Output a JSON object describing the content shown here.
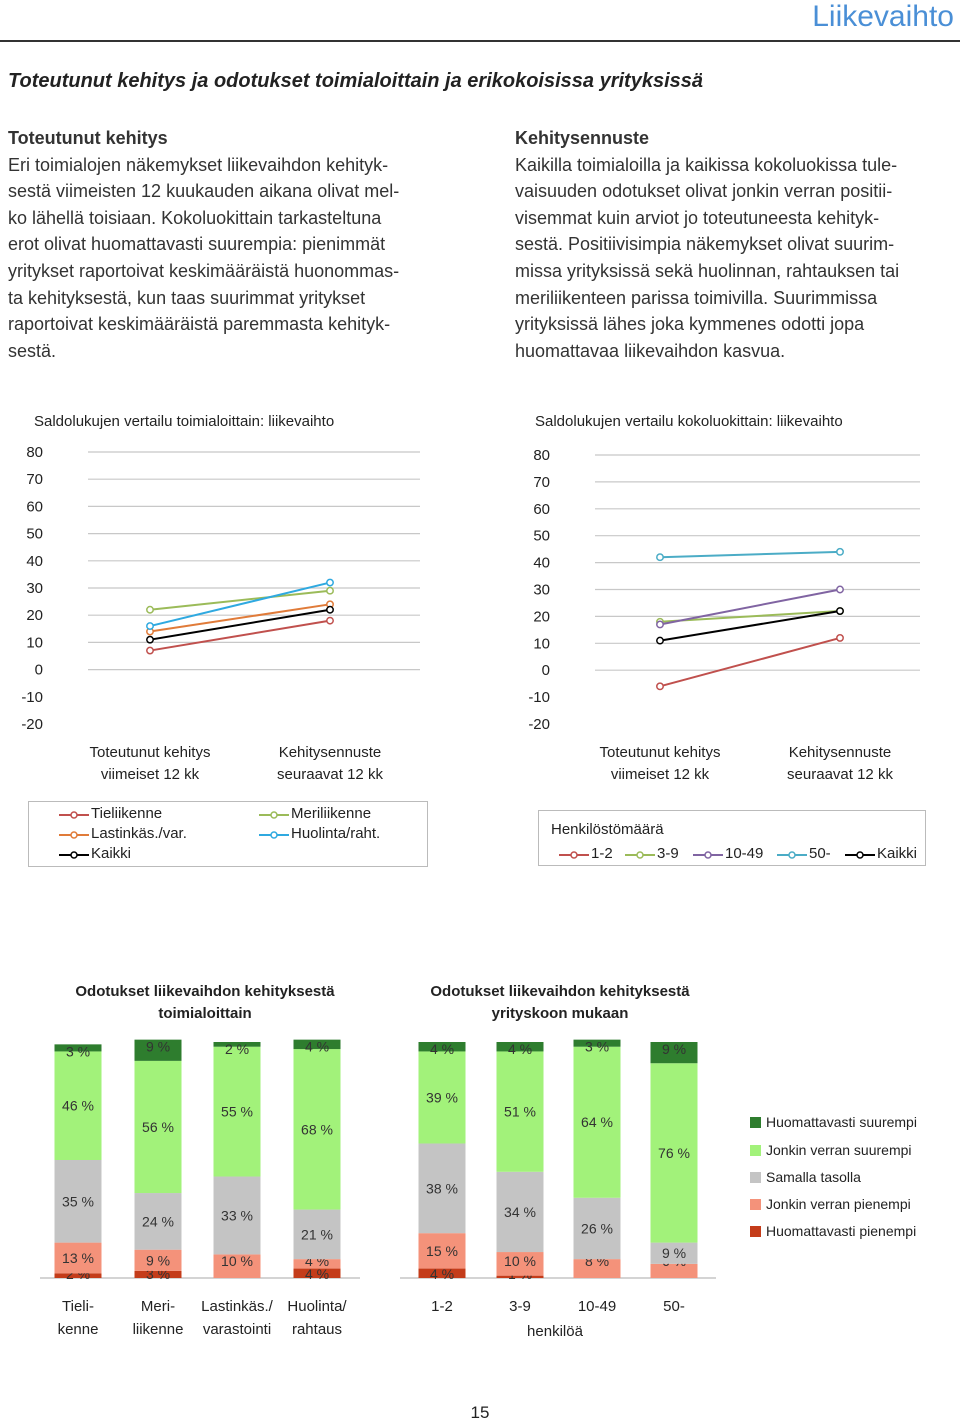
{
  "header": {
    "section": "Liikevaihto"
  },
  "title": "Toteutunut kehitys ja odotukset toimialoittain ja erikokoisissa yrityksissä",
  "left_text": {
    "heading": "Toteutunut kehitys",
    "lines": [
      "Eri toimialojen näkemykset liikevaihdon kehityk-",
      "sestä viimeisten 12 kuukauden aikana olivat mel-",
      "ko lähellä toisiaan. Kokoluokittain tarkasteltuna",
      "erot olivat huomattavasti suurempia: pienimmät",
      "yritykset raportoivat keskimääräistä huonommas-",
      "ta kehityksestä, kun taas suurimmat yritykset",
      "raportoivat keskimääräistä paremmasta kehityk-",
      "sestä."
    ]
  },
  "right_text": {
    "heading": "Kehitysennuste",
    "lines": [
      "Kaikilla toimialoilla ja kaikissa kokoluokissa tule-",
      "vaisuuden odotukset olivat jonkin verran positii-",
      "visemmat kuin arviot jo toteutuneesta kehityk-",
      "sestä. Positiivisimpia näkemykset olivat suurim-",
      "missa yrityksissä sekä huolinnan, rahtauksen tai",
      "meriliikenteen parissa toimivilla. Suurimmissa",
      "yrityksissä lähes joka kymmenes odotti jopa",
      "huomattavaa liikevaihdon kasvua."
    ]
  },
  "x_categories": [
    [
      "Toteutunut kehitys",
      "viimeiset 12 kk"
    ],
    [
      "Kehitysennuste",
      "seuraavat 12 kk"
    ]
  ],
  "chart_data": [
    {
      "type": "line",
      "title": "Saldolukujen vertailu toimialoittain: liikevaihto",
      "y_ticks": [
        "80",
        "70",
        "60",
        "50",
        "40",
        "30",
        "20",
        "10",
        "0",
        "-10",
        "-20"
      ],
      "ylim": [
        -20,
        80
      ],
      "series": [
        {
          "name": "Tieliikenne",
          "color": "#c0504d",
          "values": [
            7,
            18
          ]
        },
        {
          "name": "Meriliikenne",
          "color": "#9bbb59",
          "values": [
            22,
            29
          ]
        },
        {
          "name": "Lastinkäs./var.",
          "color": "#e07b39",
          "values": [
            14,
            24
          ]
        },
        {
          "name": "Huolinta/raht.",
          "color": "#2fa9e0",
          "values": [
            16,
            32
          ]
        },
        {
          "name": "Kaikki",
          "color": "#000000",
          "values": [
            11,
            22
          ]
        }
      ],
      "legend_placement": "bottom"
    },
    {
      "type": "line",
      "title": "Saldolukujen vertailu kokoluokittain: liikevaihto",
      "y_ticks": [
        "80",
        "70",
        "60",
        "50",
        "40",
        "30",
        "20",
        "10",
        "0",
        "-10",
        "-20"
      ],
      "ylim": [
        -20,
        80
      ],
      "legend_title": "Henkilöstömäärä",
      "series": [
        {
          "name": "1-2",
          "color": "#c0504d",
          "values": [
            -6,
            12
          ]
        },
        {
          "name": "3-9",
          "color": "#9bbb59",
          "values": [
            18,
            22
          ]
        },
        {
          "name": "10-49",
          "color": "#8064a2",
          "values": [
            17,
            30
          ]
        },
        {
          "name": "50-",
          "color": "#4bacc6",
          "values": [
            42,
            44
          ]
        },
        {
          "name": "Kaikki",
          "color": "#000000",
          "values": [
            11,
            22
          ]
        }
      ],
      "legend_placement": "bottom"
    },
    {
      "type": "bar",
      "stacked": true,
      "title_lines": [
        "Odotukset liikevaihdon kehityksestä",
        "toimialoittain"
      ],
      "categories": [
        [
          "Tieli-",
          "kenne"
        ],
        [
          "Meri-",
          "liikenne"
        ],
        [
          "Lastinkäs./",
          "varastointi"
        ],
        [
          "Huolinta/",
          "rahtaus"
        ]
      ],
      "segment_names": [
        "Huomattavasti pienempi",
        "Jonkin verran pienempi",
        "Samalla tasolla",
        "Jonkin verran suurempi",
        "Huomattavasti suurempi"
      ],
      "segment_colors": [
        "#c43c1a",
        "#f4927a",
        "#c4c4c4",
        "#a2f27a",
        "#2e7d2e"
      ],
      "values": [
        [
          2,
          13,
          35,
          46,
          3
        ],
        [
          3,
          9,
          24,
          56,
          9
        ],
        [
          0,
          10,
          33,
          55,
          2
        ],
        [
          4,
          4,
          21,
          68,
          4
        ]
      ],
      "labels": [
        [
          "2 %",
          "13 %",
          "35 %",
          "46 %",
          "3 %"
        ],
        [
          "3 %",
          "9 %",
          "24 %",
          "56 %",
          "9 %"
        ],
        [
          "",
          "10 %",
          "33 %",
          "55 %",
          "2 %"
        ],
        [
          "4 %",
          "4 %",
          "21 %",
          "68 %",
          "4 %"
        ]
      ]
    },
    {
      "type": "bar",
      "stacked": true,
      "title_lines": [
        "Odotukset liikevaihdon kehityksestä",
        "yrityskoon mukaan"
      ],
      "categories": [
        [
          "1-2"
        ],
        [
          "3-9"
        ],
        [
          "10-49"
        ],
        [
          "50-"
        ]
      ],
      "xlabel": "henkilöä",
      "values": [
        [
          4,
          15,
          38,
          39,
          4
        ],
        [
          1,
          10,
          34,
          51,
          4
        ],
        [
          0,
          8,
          26,
          64,
          3
        ],
        [
          0,
          6,
          9,
          76,
          9
        ]
      ],
      "labels": [
        [
          "4 %",
          "15 %",
          "38 %",
          "39 %",
          "4 %"
        ],
        [
          "1 %",
          "10 %",
          "34 %",
          "51 %",
          "4 %"
        ],
        [
          "",
          "8 %",
          "26 %",
          "64 %",
          "3 %"
        ],
        [
          "",
          "6 %",
          "9 %",
          "76 %",
          "9 %"
        ]
      ]
    }
  ],
  "page_number": "15"
}
